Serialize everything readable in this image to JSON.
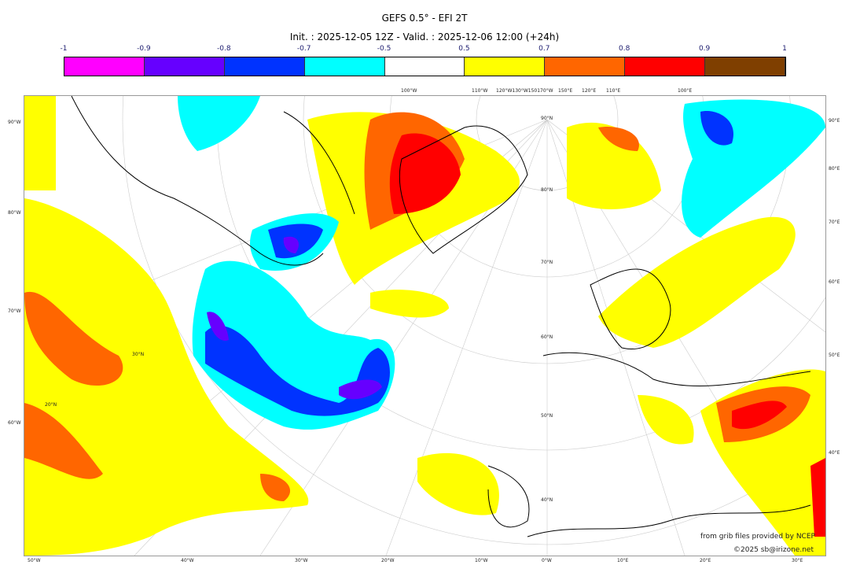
{
  "title": "GEFS 0.5° - EFI 2T",
  "subtitle": "Init. : 2025-12-05 12Z - Valid. : 2025-12-06 12:00 (+24h)",
  "colorbar": {
    "ticks": [
      "-1",
      "-0.9",
      "-0.8",
      "-0.7",
      "-0.5",
      "0.5",
      "0.7",
      "0.8",
      "0.9",
      "1"
    ],
    "colors": [
      "#ff00ff",
      "#6600ff",
      "#0033ff",
      "#00ffff",
      "#ffffff",
      "#ffff00",
      "#ff6600",
      "#ff0000",
      "#7f3f00"
    ]
  },
  "axes": {
    "top": [
      "100°W",
      "110°W",
      "120°W130°W150170°W",
      "150°E",
      "120°E",
      "110°E",
      "100°E"
    ],
    "left": [
      "90°W",
      "80°W",
      "70°W",
      "60°W"
    ],
    "right": [
      "90°E",
      "80°E",
      "70°E",
      "60°E",
      "50°E",
      "40°E"
    ],
    "bottom": [
      "50°W",
      "40°W",
      "30°W",
      "20°W",
      "10°W",
      "0°W",
      "10°E",
      "20°E",
      "30°E"
    ],
    "lat_labels": [
      "90°N",
      "80°N",
      "70°N",
      "60°N",
      "50°N",
      "40°N",
      "30°N",
      "20°N"
    ]
  },
  "credits": {
    "source": "from grib files provided by NCEP",
    "copyright": "©2025 sb@irizone.net"
  }
}
